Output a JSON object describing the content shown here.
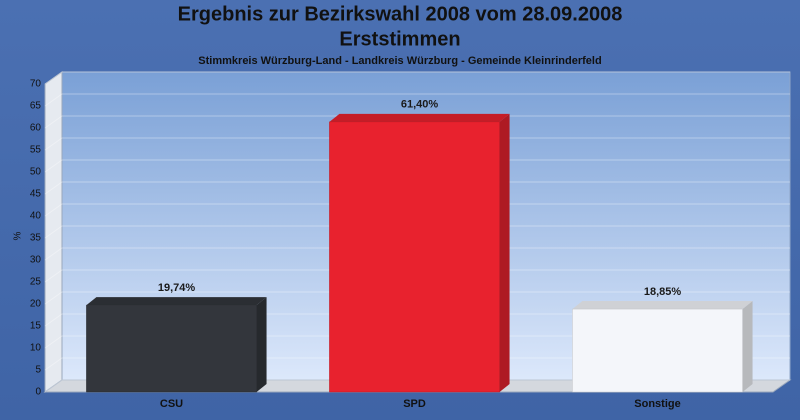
{
  "chart_data": {
    "type": "bar3d",
    "title": [
      "Ergebnis zur Bezirkswahl 2008 vom 28.09.2008",
      "Erststimmen"
    ],
    "subtitle": "Stimmkreis Würzburg-Land - Landkreis Würzburg - Gemeinde Kleinrinderfeld",
    "y_label": "%",
    "categories": [
      "CSU",
      "SPD",
      "Sonstige"
    ],
    "values": [
      19.74,
      61.4,
      18.85
    ],
    "value_labels": [
      "19,74%",
      "61,40%",
      "18,85%"
    ],
    "colors": [
      "#33363c",
      "#e8222e",
      "#f4f6fa"
    ],
    "ylim": [
      0,
      70
    ],
    "yticks": [
      0,
      5,
      10,
      15,
      20,
      25,
      30,
      35,
      40,
      45,
      50,
      55,
      60,
      65,
      70
    ],
    "grid": true
  }
}
